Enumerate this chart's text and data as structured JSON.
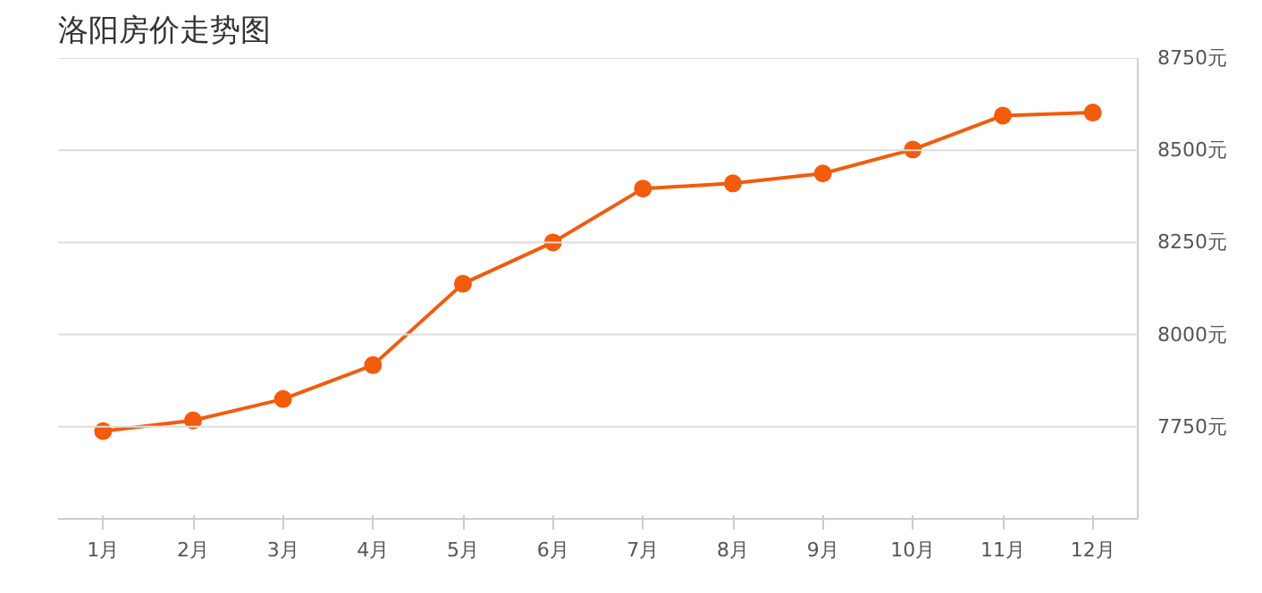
{
  "chart_data": {
    "type": "line",
    "title": "洛阳房价走势图",
    "categories": [
      "1月",
      "2月",
      "3月",
      "4月",
      "5月",
      "6月",
      "7月",
      "8月",
      "9月",
      "10月",
      "11月",
      "12月"
    ],
    "series": [
      {
        "color": "#f25c0c",
        "values": [
          7738,
          7767,
          7825,
          7917,
          8138,
          8250,
          8396,
          8410,
          8437,
          8502,
          8594,
          8602
        ]
      }
    ],
    "ylim": [
      7500,
      8750
    ],
    "yticks": [
      {
        "value": 7750,
        "label": "7750元"
      },
      {
        "value": 8000,
        "label": "8000元"
      },
      {
        "value": 8250,
        "label": "8250元"
      },
      {
        "value": 8500,
        "label": "8500元"
      },
      {
        "value": 8750,
        "label": "8750元"
      }
    ],
    "grid": "y",
    "marker": "circle",
    "line_style": "solid"
  }
}
